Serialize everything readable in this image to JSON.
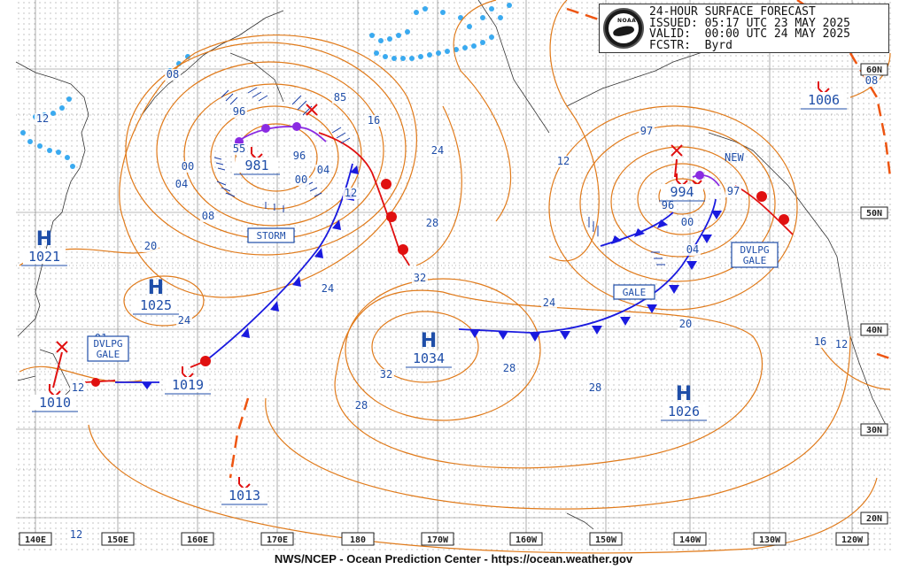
{
  "header": {
    "title_line": "24-HOUR SURFACE FORECAST",
    "issued_line": "ISSUED: 05:17 UTC 23 MAY 2025",
    "valid_line": "VALID:  00:00 UTC 24 MAY 2025",
    "forecaster_line": "FCSTR:  Byrd",
    "logo_text": "NOAA"
  },
  "footer_text": "NWS/NCEP - Ocean Prediction Center - https://ocean.weather.gov",
  "longitude_labels": [
    "140E",
    "150E",
    "160E",
    "170E",
    "180",
    "170W",
    "160W",
    "150W",
    "140W",
    "130W",
    "120W"
  ],
  "latitude_labels": [
    "60N",
    "50N",
    "40N",
    "30N",
    "20N"
  ],
  "pressure_centers": [
    {
      "type": "H",
      "value": "1021"
    },
    {
      "type": "H",
      "value": "1025"
    },
    {
      "type": "L",
      "value": "1010"
    },
    {
      "type": "L",
      "value": "1019"
    },
    {
      "type": "L",
      "value": "981"
    },
    {
      "type": "L",
      "value": "1013"
    },
    {
      "type": "H",
      "value": "1034"
    },
    {
      "type": "L",
      "value": "994"
    },
    {
      "type": "H",
      "value": "1026"
    },
    {
      "type": "L",
      "value": "1006"
    }
  ],
  "warning_labels": [
    "STORM",
    "DVLPG GALE",
    "GALE",
    "DVLPG GALE"
  ],
  "annotations": [
    "NEW"
  ],
  "isobar_labels": [
    "08",
    "12",
    "96",
    "00",
    "04",
    "08",
    "20",
    "24",
    "55",
    "96",
    "04",
    "00",
    "85",
    "16",
    "12",
    "24",
    "28",
    "32",
    "24",
    "32",
    "28",
    "28",
    "32",
    "97",
    "12",
    "96",
    "00",
    "04",
    "97",
    "24",
    "20",
    "28",
    "16",
    "12",
    "08",
    "12",
    "01",
    "12"
  ],
  "colors": {
    "isobar": "#e07a1a",
    "cold_front": "#1a1adf",
    "warm_front": "#e01010",
    "occluded_front": "#8a2be2",
    "text_blue": "#1f4ea8",
    "ice_edge": "#3aaaf0",
    "trough": "#ee5511"
  }
}
